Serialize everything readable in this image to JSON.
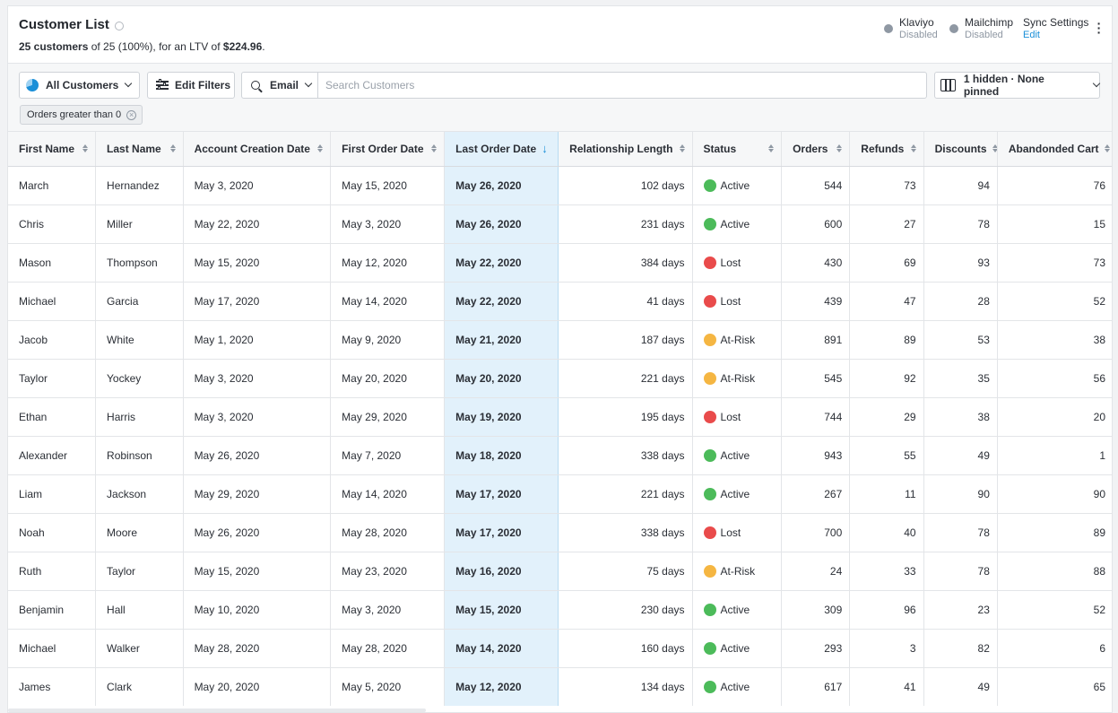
{
  "header": {
    "title": "Customer List",
    "summary": {
      "count": "25 customers",
      "of": " of 25 (100%), for an LTV of ",
      "ltv": "$224.96",
      "end": "."
    },
    "integrations": [
      {
        "name": "Klaviyo",
        "state": "Disabled"
      },
      {
        "name": "Mailchimp",
        "state": "Disabled"
      }
    ],
    "sync": {
      "label": "Sync Settings",
      "edit": "Edit"
    }
  },
  "toolbar": {
    "segment": "All Customers",
    "edit_filters": "Edit Filters",
    "search_field": "Email",
    "search_placeholder": "Search Customers",
    "search_value": "",
    "columns": "1 hidden · None pinned",
    "active_filter": "Orders greater than 0"
  },
  "colors": {
    "accent": "#1a8fd8",
    "sorted_column": "#e2f1fb",
    "status_active": "#4cbb5a",
    "status_lost": "#e94b4b",
    "status_at_risk": "#f5b642"
  },
  "table": {
    "sorted_column": "Last Order Date",
    "sort_direction": "descending",
    "columns": [
      "First Name",
      "Last Name",
      "Account Creation Date",
      "First Order Date",
      "Last Order Date",
      "Relationship Length",
      "Status",
      "Orders",
      "Refunds",
      "Discounts",
      "Abandonded Cart"
    ],
    "rows": [
      [
        "March",
        "Hernandez",
        "May 3, 2020",
        "May 15, 2020",
        "May 26, 2020",
        "102 days",
        "Active",
        "544",
        "73",
        "94",
        "76"
      ],
      [
        "Chris",
        "Miller",
        "May 22, 2020",
        "May 3, 2020",
        "May 26, 2020",
        "231 days",
        "Active",
        "600",
        "27",
        "78",
        "15"
      ],
      [
        "Mason",
        "Thompson",
        "May 15, 2020",
        "May 12, 2020",
        "May 22, 2020",
        "384 days",
        "Lost",
        "430",
        "69",
        "93",
        "73"
      ],
      [
        "Michael",
        "Garcia",
        "May 17, 2020",
        "May 14, 2020",
        "May 22, 2020",
        "41 days",
        "Lost",
        "439",
        "47",
        "28",
        "52"
      ],
      [
        "Jacob",
        "White",
        "May 1, 2020",
        "May 9, 2020",
        "May 21, 2020",
        "187 days",
        "At-Risk",
        "891",
        "89",
        "53",
        "38"
      ],
      [
        "Taylor",
        "Yockey",
        "May 3, 2020",
        "May 20, 2020",
        "May 20, 2020",
        "221 days",
        "At-Risk",
        "545",
        "92",
        "35",
        "56"
      ],
      [
        "Ethan",
        "Harris",
        "May 3, 2020",
        "May 29, 2020",
        "May 19, 2020",
        "195 days",
        "Lost",
        "744",
        "29",
        "38",
        "20"
      ],
      [
        "Alexander",
        "Robinson",
        "May 26, 2020",
        "May 7, 2020",
        "May 18, 2020",
        "338 days",
        "Active",
        "943",
        "55",
        "49",
        "1"
      ],
      [
        "Liam",
        "Jackson",
        "May 29, 2020",
        "May 14, 2020",
        "May 17, 2020",
        "221 days",
        "Active",
        "267",
        "11",
        "90",
        "90"
      ],
      [
        "Noah",
        "Moore",
        "May 26, 2020",
        "May 28, 2020",
        "May 17, 2020",
        "338 days",
        "Lost",
        "700",
        "40",
        "78",
        "89"
      ],
      [
        "Ruth",
        "Taylor",
        "May 15, 2020",
        "May 23, 2020",
        "May 16, 2020",
        "75 days",
        "At-Risk",
        "24",
        "33",
        "78",
        "88"
      ],
      [
        "Benjamin",
        "Hall",
        "May 10, 2020",
        "May 3, 2020",
        "May 15, 2020",
        "230 days",
        "Active",
        "309",
        "96",
        "23",
        "52"
      ],
      [
        "Michael",
        "Walker",
        "May 28, 2020",
        "May 28, 2020",
        "May 14, 2020",
        "160 days",
        "Active",
        "293",
        "3",
        "82",
        "6"
      ],
      [
        "James",
        "Clark",
        "May 20, 2020",
        "May 5, 2020",
        "May 12, 2020",
        "134 days",
        "Active",
        "617",
        "41",
        "49",
        "65"
      ]
    ]
  }
}
